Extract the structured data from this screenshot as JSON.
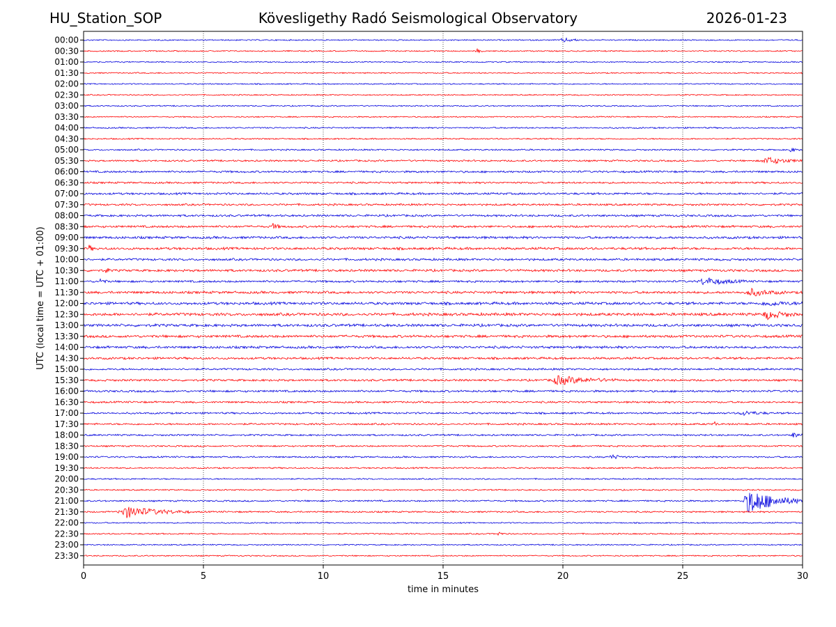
{
  "chart_data": {
    "type": "line",
    "station_label": "HU_Station_SOP",
    "title": "Kövesligethy Radó Seismological Observatory",
    "date_label": "2026-01-23",
    "xlabel": "time in minutes",
    "ylabel": "UTC (local time = UTC + 01:00)",
    "xlim": [
      0,
      30
    ],
    "xticks": [
      "0",
      "5",
      "10",
      "15",
      "20",
      "25",
      "30"
    ],
    "vertical_gridlines_at": [
      5,
      10,
      15,
      20,
      25
    ],
    "trace_colors": [
      "#0000dd",
      "#ff0000"
    ],
    "rows": [
      {
        "label": "00:00",
        "noise": 1.0,
        "events": [
          {
            "t": 20.0,
            "amp": 3,
            "dur": 0.8
          }
        ]
      },
      {
        "label": "00:30",
        "noise": 1.0,
        "events": [
          {
            "t": 16.4,
            "amp": 3,
            "dur": 0.3
          }
        ]
      },
      {
        "label": "01:00",
        "noise": 1.0,
        "events": []
      },
      {
        "label": "01:30",
        "noise": 1.0,
        "events": []
      },
      {
        "label": "02:00",
        "noise": 1.0,
        "events": []
      },
      {
        "label": "02:30",
        "noise": 1.0,
        "events": []
      },
      {
        "label": "03:00",
        "noise": 1.0,
        "events": []
      },
      {
        "label": "03:30",
        "noise": 1.0,
        "events": []
      },
      {
        "label": "04:00",
        "noise": 1.2,
        "events": []
      },
      {
        "label": "04:30",
        "noise": 1.1,
        "events": []
      },
      {
        "label": "05:00",
        "noise": 1.2,
        "events": [
          {
            "t": 29.5,
            "amp": 3,
            "dur": 0.4
          }
        ]
      },
      {
        "label": "05:30",
        "noise": 1.4,
        "events": [
          {
            "t": 28.5,
            "amp": 5,
            "dur": 1.5
          }
        ]
      },
      {
        "label": "06:00",
        "noise": 1.6,
        "events": []
      },
      {
        "label": "06:30",
        "noise": 1.5,
        "events": []
      },
      {
        "label": "07:00",
        "noise": 1.7,
        "events": []
      },
      {
        "label": "07:30",
        "noise": 1.6,
        "events": []
      },
      {
        "label": "08:00",
        "noise": 1.7,
        "events": []
      },
      {
        "label": "08:30",
        "noise": 1.8,
        "events": [
          {
            "t": 7.9,
            "amp": 4,
            "dur": 0.4
          }
        ]
      },
      {
        "label": "09:00",
        "noise": 2.0,
        "events": []
      },
      {
        "label": "09:30",
        "noise": 2.0,
        "events": [
          {
            "t": 0.2,
            "amp": 5,
            "dur": 0.3
          }
        ]
      },
      {
        "label": "10:00",
        "noise": 1.8,
        "events": []
      },
      {
        "label": "10:30",
        "noise": 1.9,
        "events": [
          {
            "t": 0.9,
            "amp": 6,
            "dur": 0.2
          }
        ]
      },
      {
        "label": "11:00",
        "noise": 1.7,
        "events": [
          {
            "t": 0.7,
            "amp": 4,
            "dur": 0.3
          },
          {
            "t": 25.9,
            "amp": 5,
            "dur": 1.8
          }
        ]
      },
      {
        "label": "11:30",
        "noise": 2.0,
        "events": [
          {
            "t": 27.8,
            "amp": 5,
            "dur": 1.5
          }
        ]
      },
      {
        "label": "12:00",
        "noise": 2.2,
        "events": [
          {
            "t": 28.5,
            "amp": 3,
            "dur": 1.5
          }
        ]
      },
      {
        "label": "12:30",
        "noise": 2.3,
        "events": [
          {
            "t": 28.5,
            "amp": 6,
            "dur": 1.2
          }
        ]
      },
      {
        "label": "13:00",
        "noise": 2.2,
        "events": []
      },
      {
        "label": "13:30",
        "noise": 2.1,
        "events": []
      },
      {
        "label": "14:00",
        "noise": 2.0,
        "events": []
      },
      {
        "label": "14:30",
        "noise": 1.8,
        "events": []
      },
      {
        "label": "15:00",
        "noise": 1.6,
        "events": []
      },
      {
        "label": "15:30",
        "noise": 1.7,
        "events": [
          {
            "t": 19.8,
            "amp": 6,
            "dur": 2.5
          }
        ]
      },
      {
        "label": "16:00",
        "noise": 1.7,
        "events": []
      },
      {
        "label": "16:30",
        "noise": 1.5,
        "events": []
      },
      {
        "label": "17:00",
        "noise": 1.5,
        "events": [
          {
            "t": 27.5,
            "amp": 3,
            "dur": 1.2
          }
        ]
      },
      {
        "label": "17:30",
        "noise": 1.5,
        "events": [
          {
            "t": 26.3,
            "amp": 4,
            "dur": 0.2
          }
        ]
      },
      {
        "label": "18:00",
        "noise": 1.4,
        "events": [
          {
            "t": 29.6,
            "amp": 4,
            "dur": 0.4
          }
        ]
      },
      {
        "label": "18:30",
        "noise": 1.3,
        "events": []
      },
      {
        "label": "19:00",
        "noise": 1.3,
        "events": [
          {
            "t": 22.0,
            "amp": 3,
            "dur": 0.8
          }
        ]
      },
      {
        "label": "19:30",
        "noise": 1.2,
        "events": []
      },
      {
        "label": "20:00",
        "noise": 1.1,
        "events": []
      },
      {
        "label": "20:30",
        "noise": 1.1,
        "events": []
      },
      {
        "label": "21:00",
        "noise": 1.3,
        "events": [
          {
            "t": 27.8,
            "amp": 18,
            "dur": 2.2
          }
        ]
      },
      {
        "label": "21:30",
        "noise": 1.3,
        "events": [
          {
            "t": 1.8,
            "amp": 8,
            "dur": 2.6
          }
        ]
      },
      {
        "label": "22:00",
        "noise": 1.0,
        "events": []
      },
      {
        "label": "22:30",
        "noise": 1.1,
        "events": [
          {
            "t": 17.3,
            "amp": 3,
            "dur": 0.3
          }
        ]
      },
      {
        "label": "23:00",
        "noise": 1.0,
        "events": []
      },
      {
        "label": "23:30",
        "noise": 1.0,
        "events": []
      }
    ]
  }
}
